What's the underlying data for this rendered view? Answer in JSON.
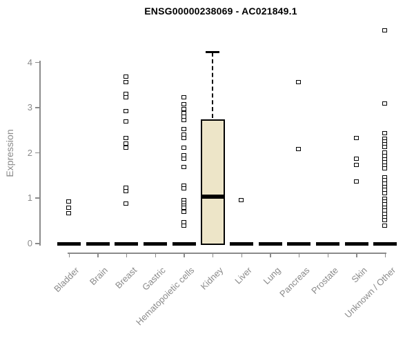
{
  "chart_data": {
    "type": "boxplot",
    "title": "ENSG00000238069 - AC021849.1",
    "xlabel": "",
    "ylabel": "Expression",
    "ylim": [
      0,
      4.85
    ],
    "yticks": [
      0,
      1,
      2,
      3,
      4
    ],
    "grid": false,
    "legend": false,
    "categories": [
      "Bladder",
      "Brain",
      "Breast",
      "Gastric",
      "Hematopoietic cells",
      "Kidney",
      "Liver",
      "Lung",
      "Pancreas",
      "Prostate",
      "Skin",
      "Unknown / Other"
    ],
    "series": [
      {
        "category": "Bladder",
        "q1": 0,
        "median": 0,
        "q3": 0,
        "whisker_low": 0,
        "whisker_high": 0,
        "outliers": [
          0.92,
          0.77,
          0.65
        ]
      },
      {
        "category": "Brain",
        "q1": 0,
        "median": 0,
        "q3": 0,
        "whisker_low": 0,
        "whisker_high": 0,
        "outliers": []
      },
      {
        "category": "Breast",
        "q1": 0,
        "median": 0,
        "q3": 0,
        "whisker_low": 0,
        "whisker_high": 0,
        "outliers": [
          3.67,
          3.55,
          3.3,
          3.22,
          2.91,
          2.69,
          2.31,
          2.2,
          2.1,
          1.22,
          1.15,
          0.87
        ]
      },
      {
        "category": "Gastric",
        "q1": 0,
        "median": 0,
        "q3": 0,
        "whisker_low": 0,
        "whisker_high": 0,
        "outliers": []
      },
      {
        "category": "Hematopoietic cells",
        "q1": 0,
        "median": 0,
        "q3": 0,
        "whisker_low": 0,
        "whisker_high": 0,
        "outliers": [
          3.22,
          3.07,
          2.95,
          2.87,
          2.79,
          2.72,
          2.51,
          2.39,
          2.31,
          2.11,
          1.93,
          1.86,
          1.68,
          1.27,
          1.2,
          0.94,
          0.89,
          0.83,
          0.77,
          0.69,
          0.46,
          0.38
        ]
      },
      {
        "category": "Kidney",
        "q1": 0,
        "median": 1.03,
        "q3": 2.73,
        "whisker_low": 0,
        "whisker_high": 4.22,
        "outliers": []
      },
      {
        "category": "Liver",
        "q1": 0,
        "median": 0,
        "q3": 0,
        "whisker_low": 0,
        "whisker_high": 0,
        "outliers": [
          0.95
        ]
      },
      {
        "category": "Lung",
        "q1": 0,
        "median": 0,
        "q3": 0,
        "whisker_low": 0,
        "whisker_high": 0,
        "outliers": []
      },
      {
        "category": "Pancreas",
        "q1": 0,
        "median": 0,
        "q3": 0,
        "whisker_low": 0,
        "whisker_high": 0,
        "outliers": [
          3.55,
          2.08
        ]
      },
      {
        "category": "Prostate",
        "q1": 0,
        "median": 0,
        "q3": 0,
        "whisker_low": 0,
        "whisker_high": 0,
        "outliers": []
      },
      {
        "category": "Skin",
        "q1": 0,
        "median": 0,
        "q3": 0,
        "whisker_low": 0,
        "whisker_high": 0,
        "outliers": [
          2.32,
          1.86,
          1.73,
          1.35
        ]
      },
      {
        "category": "Unknown / Other",
        "q1": 0,
        "median": 0,
        "q3": 0,
        "whisker_low": 0,
        "whisker_high": 0,
        "outliers": [
          4.7,
          3.08,
          2.42,
          2.3,
          2.24,
          2.18,
          2.12,
          1.99,
          1.92,
          1.85,
          1.78,
          1.71,
          1.64,
          1.45,
          1.38,
          1.31,
          1.24,
          1.17,
          1.1,
          0.98,
          0.92,
          0.85,
          0.78,
          0.71,
          0.64,
          0.57,
          0.5,
          0.38
        ]
      }
    ],
    "colors": {
      "box_fill": "#ede5c8",
      "box_border": "#000000",
      "median": "#000000",
      "marker_border": "#000000",
      "axis": "#8a8a8a",
      "tick_label": "#8a8a8a",
      "title": "#000000",
      "background": "#ffffff"
    }
  }
}
